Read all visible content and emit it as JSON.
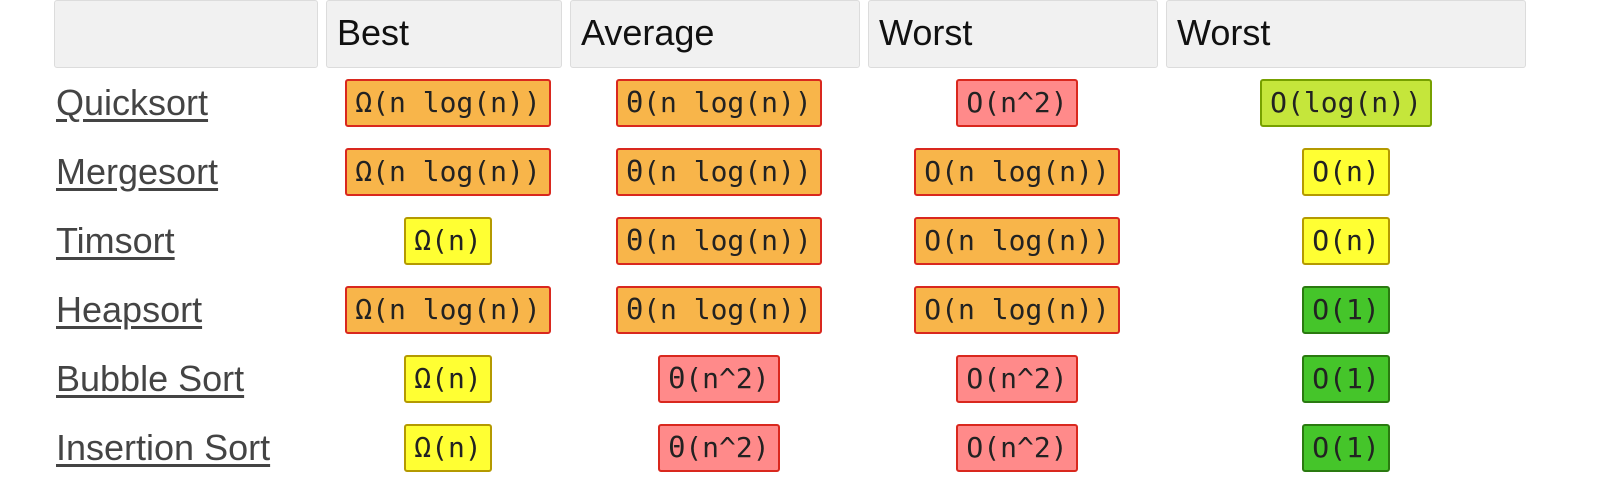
{
  "header": {
    "col1": "Best",
    "col2": "Average",
    "col3": "Worst",
    "col4": "Worst"
  },
  "colors": {
    "orange": "#f8b54a",
    "red": "#ff8a8a",
    "yellow": "#ffff33",
    "yellowgreen": "#c5e63b",
    "green": "#45c52a",
    "badge_border_red": "#d9281e"
  },
  "rows": [
    {
      "name": "Quicksort",
      "best": "Ω(n log(n))",
      "average": "Θ(n log(n))",
      "worst": "O(n^2)",
      "space": "O(log(n))"
    },
    {
      "name": "Mergesort",
      "best": "Ω(n log(n))",
      "average": "Θ(n log(n))",
      "worst": "O(n log(n))",
      "space": "O(n)"
    },
    {
      "name": "Timsort",
      "best": "Ω(n)",
      "average": "Θ(n log(n))",
      "worst": "O(n log(n))",
      "space": "O(n)"
    },
    {
      "name": "Heapsort",
      "best": "Ω(n log(n))",
      "average": "Θ(n log(n))",
      "worst": "O(n log(n))",
      "space": "O(1)"
    },
    {
      "name": "Bubble Sort",
      "best": "Ω(n)",
      "average": "Θ(n^2)",
      "worst": "O(n^2)",
      "space": "O(1)"
    },
    {
      "name": "Insertion Sort",
      "best": "Ω(n)",
      "average": "Θ(n^2)",
      "worst": "O(n^2)",
      "space": "O(1)"
    }
  ]
}
